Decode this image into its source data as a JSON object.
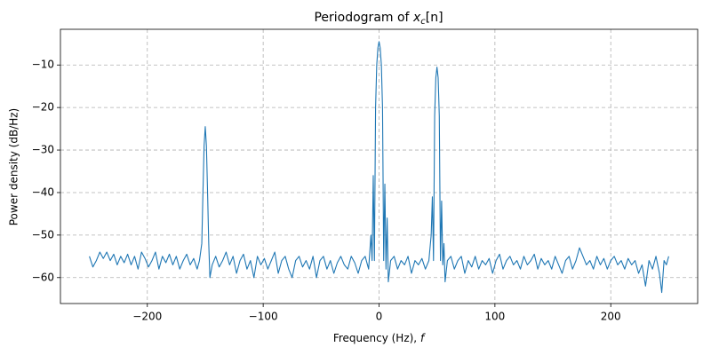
{
  "chart_data": {
    "type": "line",
    "title": {
      "text": "Periodogram of ",
      "var": "x",
      "sub": "c",
      "rest": "[n]"
    },
    "xlabel": {
      "text": "Frequency (Hz), ",
      "var": "f"
    },
    "ylabel": "Power density (dB/Hz)",
    "color": "#1f77b4",
    "grid": true,
    "xlim": [
      -275,
      275
    ],
    "ylim": [
      -66.1,
      -1.6
    ],
    "xticks": [
      {
        "value": -200,
        "label": "−200"
      },
      {
        "value": -100,
        "label": "−100"
      },
      0,
      100,
      200
    ],
    "yticks": [
      {
        "value": -10,
        "label": "−10"
      },
      {
        "value": -20,
        "label": "−20"
      },
      {
        "value": -30,
        "label": "−30"
      },
      {
        "value": -40,
        "label": "−40"
      },
      {
        "value": -50,
        "label": "−50"
      },
      {
        "value": -60,
        "label": "−60"
      }
    ],
    "x": [
      -250,
      -247,
      -244,
      -241,
      -238,
      -235,
      -232,
      -229,
      -226,
      -223,
      -220,
      -217,
      -214,
      -211,
      -208,
      -205,
      -202,
      -199,
      -196,
      -193,
      -190,
      -187,
      -184,
      -181,
      -178,
      -175,
      -172,
      -169,
      -166,
      -163,
      -160,
      -157,
      -155,
      -153,
      -152,
      -151,
      -150,
      -149,
      -148,
      -147,
      -146,
      -144,
      -141,
      -138,
      -135,
      -132,
      -129,
      -126,
      -123,
      -120,
      -117,
      -114,
      -111,
      -108,
      -105,
      -102,
      -99,
      -96,
      -93,
      -90,
      -87,
      -84,
      -81,
      -78,
      -75,
      -72,
      -69,
      -66,
      -63,
      -60,
      -57,
      -54,
      -51,
      -48,
      -45,
      -42,
      -39,
      -36,
      -33,
      -30,
      -27,
      -24,
      -21,
      -18,
      -15,
      -12,
      -9,
      -7,
      -6,
      -5,
      -4,
      -3,
      -2,
      -1,
      0,
      1,
      2,
      3,
      4,
      5,
      6,
      7,
      8,
      10,
      13,
      16,
      19,
      22,
      25,
      28,
      31,
      34,
      37,
      40,
      43,
      45,
      46,
      47,
      48,
      49,
      50,
      51,
      52,
      53,
      54,
      55,
      56,
      57,
      59,
      62,
      65,
      68,
      71,
      74,
      77,
      80,
      83,
      86,
      89,
      92,
      95,
      98,
      101,
      104,
      107,
      110,
      113,
      116,
      119,
      122,
      125,
      128,
      131,
      134,
      137,
      140,
      143,
      146,
      149,
      152,
      155,
      158,
      161,
      164,
      167,
      170,
      173,
      176,
      179,
      182,
      185,
      188,
      191,
      194,
      197,
      200,
      203,
      206,
      209,
      212,
      215,
      218,
      221,
      224,
      227,
      230,
      233,
      236,
      239,
      242,
      244,
      246,
      248,
      250
    ],
    "values": [
      -55,
      -57.5,
      -56,
      -54,
      -55.5,
      -54,
      -56,
      -54.5,
      -57,
      -55,
      -56.5,
      -54.5,
      -57,
      -55,
      -58,
      -54,
      -55.5,
      -57.5,
      -56,
      -54,
      -58,
      -55,
      -56.5,
      -54.5,
      -57,
      -55,
      -58,
      -56,
      -54.5,
      -57,
      -55.5,
      -58,
      -56,
      -52,
      -40,
      -29,
      -24.5,
      -29,
      -40,
      -52,
      -60,
      -57,
      -55,
      -57.5,
      -56,
      -54,
      -57,
      -55,
      -59,
      -56,
      -54.5,
      -58,
      -56,
      -60,
      -55,
      -57,
      -55.5,
      -58,
      -56,
      -54,
      -59,
      -56,
      -55,
      -58,
      -60,
      -56,
      -55,
      -57.5,
      -56,
      -58,
      -55,
      -60,
      -56,
      -55,
      -58,
      -56,
      -59,
      -56.5,
      -55,
      -57,
      -58,
      -55,
      -56.5,
      -59,
      -56,
      -55,
      -58,
      -50,
      -56,
      -36,
      -56,
      -20,
      -10,
      -6,
      -4.5,
      -6,
      -10,
      -20,
      -56,
      -38,
      -58,
      -46,
      -61,
      -56,
      -55,
      -58,
      -56,
      -57,
      -55,
      -59,
      -56,
      -57,
      -55.5,
      -58,
      -56,
      -50,
      -41,
      -56,
      -22,
      -13,
      -10.5,
      -13,
      -22,
      -56,
      -42,
      -57,
      -52,
      -61,
      -56,
      -55,
      -58,
      -56,
      -55,
      -59,
      -56,
      -57.5,
      -55,
      -58,
      -56,
      -57,
      -55.5,
      -59,
      -56,
      -54.5,
      -58,
      -56,
      -55,
      -57,
      -56,
      -58,
      -55,
      -57,
      -56,
      -54.5,
      -58,
      -55.5,
      -57,
      -56,
      -58,
      -55,
      -57,
      -59,
      -56,
      -55,
      -58,
      -56,
      -53,
      -55,
      -57,
      -56,
      -58,
      -55,
      -57,
      -55.5,
      -58,
      -56,
      -55,
      -57,
      -56,
      -58,
      -55.5,
      -57,
      -56,
      -59,
      -57,
      -62,
      -56,
      -58,
      -55,
      -59,
      -63.5,
      -56,
      -57,
      -55
    ]
  }
}
